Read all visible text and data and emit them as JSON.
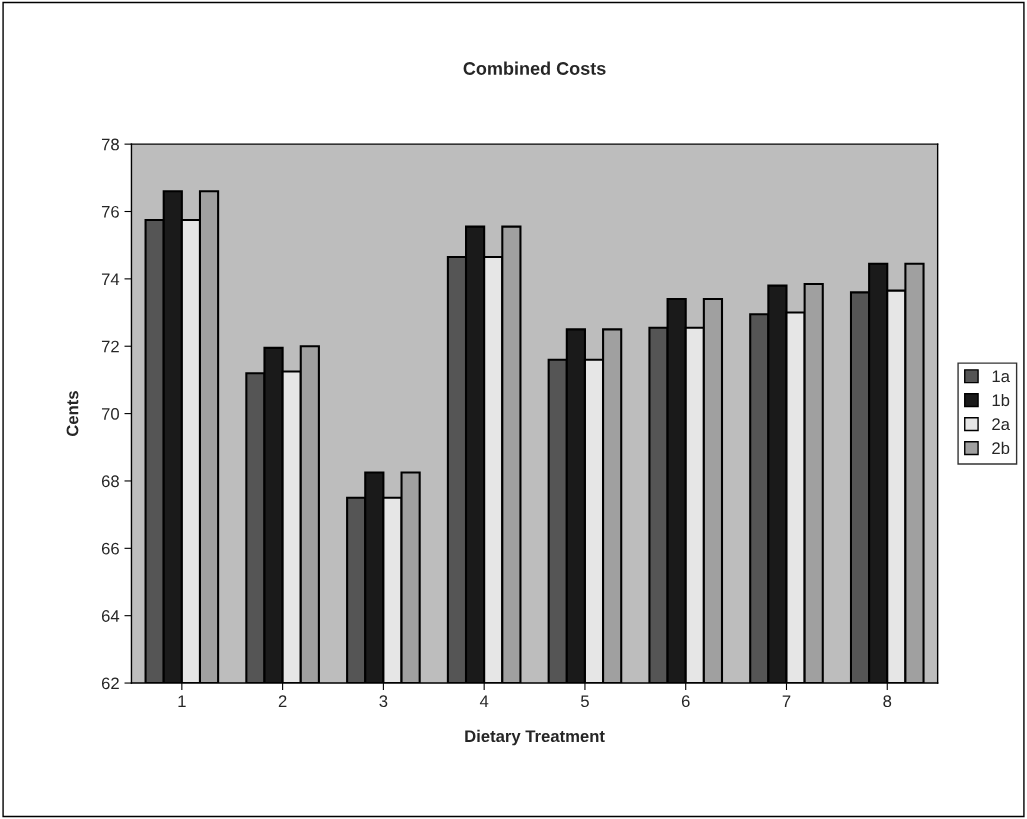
{
  "chart_data": {
    "type": "bar",
    "title": "Combined Costs",
    "xlabel": "Dietary Treatment",
    "ylabel": "Cents",
    "categories": [
      "1",
      "2",
      "3",
      "4",
      "5",
      "6",
      "7",
      "8"
    ],
    "series": [
      {
        "name": "1a",
        "color": "#555555",
        "values": [
          75.75,
          71.2,
          67.5,
          74.65,
          71.6,
          72.55,
          72.95,
          73.6
        ]
      },
      {
        "name": "1b",
        "color": "#1a1a1a",
        "values": [
          76.6,
          71.95,
          68.25,
          75.55,
          72.5,
          73.4,
          73.8,
          74.45
        ]
      },
      {
        "name": "2a",
        "color": "#e6e6e6",
        "values": [
          75.75,
          71.25,
          67.5,
          74.65,
          71.6,
          72.55,
          73.0,
          73.65
        ]
      },
      {
        "name": "2b",
        "color": "#a0a0a0",
        "values": [
          76.6,
          72.0,
          68.25,
          75.55,
          72.5,
          73.4,
          73.85,
          74.45
        ]
      }
    ],
    "ylim": [
      62,
      78
    ],
    "yticks": [
      62,
      64,
      66,
      68,
      70,
      72,
      74,
      76,
      78
    ],
    "grid": false,
    "legend": "right"
  }
}
